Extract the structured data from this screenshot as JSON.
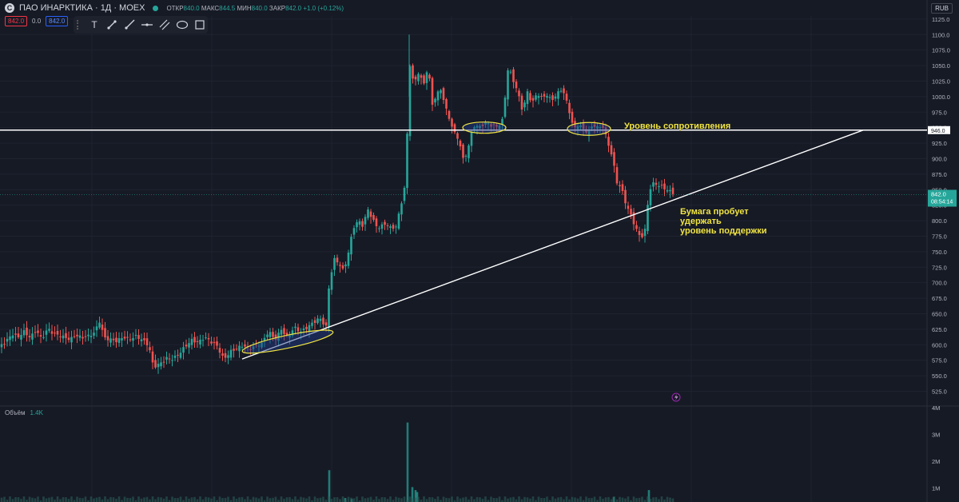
{
  "header": {
    "logo": "С",
    "title": "ПАО ИНАРКТИКА · 1Д · MOEX",
    "ohlc": [
      {
        "k": "ОТКР",
        "v": "840.0"
      },
      {
        "k": "МАКС",
        "v": "844.5"
      },
      {
        "k": "МИН",
        "v": "840.0"
      },
      {
        "k": "ЗАКР",
        "v": "842.0 +1.0 (+0.12%)"
      }
    ]
  },
  "row2": {
    "sell": "842.0",
    "spread": "0.0",
    "buy": "842.0"
  },
  "toolbar": {
    "icons": [
      "grip-icon",
      "text-icon",
      "trend-line-icon",
      "ray-icon",
      "horizontal-line-icon",
      "parallel-channel-icon",
      "ellipse-icon",
      "rectangle-icon"
    ]
  },
  "currency": "RUB",
  "volume": {
    "label": "Объём",
    "value": "1.4K"
  },
  "colors": {
    "bg": "#161a25",
    "up": "#26a69a",
    "down": "#ef5350",
    "line": "#ffffff",
    "annotation": "#f0e442"
  },
  "chart_data": {
    "type": "candlestick",
    "ylim": [
      505,
      1130
    ],
    "yticks": [
      1125,
      1100,
      1075,
      1050,
      1025,
      1000,
      975,
      950,
      925,
      900,
      875,
      850,
      825,
      800,
      775,
      750,
      725,
      700,
      675,
      650,
      625,
      600,
      575,
      550,
      525
    ],
    "ytick_labels": [
      "1125.0",
      "1100.0",
      "1075.0",
      "1050.0",
      "1025.0",
      "1000.0",
      "975.0",
      "950.0",
      "925.0",
      "900.0",
      "875.0",
      "850.0",
      "825.0",
      "800.0",
      "775.0",
      "750.0",
      "725.0",
      "700.0",
      "675.0",
      "650.0",
      "625.0",
      "600.0",
      "575.0",
      "550.0",
      "525.0"
    ],
    "close_path": [
      [
        0,
        600
      ],
      [
        8,
        605
      ],
      [
        15,
        615
      ],
      [
        22,
        608
      ],
      [
        30,
        618
      ],
      [
        38,
        610
      ],
      [
        45,
        625
      ],
      [
        52,
        612
      ],
      [
        60,
        630
      ],
      [
        66,
        622
      ],
      [
        72,
        618
      ],
      [
        80,
        612
      ],
      [
        88,
        606
      ],
      [
        95,
        612
      ],
      [
        102,
        608
      ],
      [
        110,
        612
      ],
      [
        118,
        620
      ],
      [
        125,
        642
      ],
      [
        130,
        615
      ],
      [
        138,
        612
      ],
      [
        146,
        608
      ],
      [
        154,
        612
      ],
      [
        162,
        606
      ],
      [
        170,
        610
      ],
      [
        178,
        605
      ],
      [
        186,
        598
      ],
      [
        192,
        565
      ],
      [
        200,
        572
      ],
      [
        208,
        582
      ],
      [
        216,
        580
      ],
      [
        224,
        586
      ],
      [
        232,
        596
      ],
      [
        240,
        604
      ],
      [
        248,
        600
      ],
      [
        256,
        610
      ],
      [
        264,
        605
      ],
      [
        272,
        600
      ],
      [
        280,
        580
      ],
      [
        288,
        592
      ],
      [
        296,
        595
      ],
      [
        304,
        598
      ],
      [
        312,
        590
      ],
      [
        320,
        595
      ],
      [
        328,
        600
      ],
      [
        336,
        622
      ],
      [
        344,
        610
      ],
      [
        352,
        628
      ],
      [
        360,
        615
      ],
      [
        368,
        630
      ],
      [
        376,
        620
      ],
      [
        384,
        625
      ],
      [
        392,
        632
      ],
      [
        400,
        640
      ],
      [
        408,
        628
      ],
      [
        412,
        700
      ],
      [
        418,
        740
      ],
      [
        424,
        735
      ],
      [
        430,
        722
      ],
      [
        436,
        752
      ],
      [
        442,
        790
      ],
      [
        448,
        800
      ],
      [
        454,
        790
      ],
      [
        460,
        815
      ],
      [
        466,
        800
      ],
      [
        472,
        785
      ],
      [
        478,
        790
      ],
      [
        484,
        795
      ],
      [
        490,
        788
      ],
      [
        496,
        795
      ],
      [
        502,
        830
      ],
      [
        508,
        870
      ],
      [
        512,
        1060
      ],
      [
        518,
        1020
      ],
      [
        524,
        1040
      ],
      [
        530,
        1015
      ],
      [
        536,
        1050
      ],
      [
        540,
        980
      ],
      [
        546,
        1000
      ],
      [
        552,
        1010
      ],
      [
        558,
        980
      ],
      [
        564,
        960
      ],
      [
        568,
        945
      ],
      [
        574,
        935
      ],
      [
        580,
        900
      ],
      [
        586,
        920
      ],
      [
        592,
        955
      ],
      [
        598,
        950
      ],
      [
        604,
        952
      ],
      [
        610,
        955
      ],
      [
        616,
        948
      ],
      [
        622,
        950
      ],
      [
        628,
        955
      ],
      [
        632,
        1000
      ],
      [
        636,
        1050
      ],
      [
        642,
        1030
      ],
      [
        648,
        1010
      ],
      [
        654,
        980
      ],
      [
        660,
        1010
      ],
      [
        666,
        990
      ],
      [
        672,
        1005
      ],
      [
        678,
        995
      ],
      [
        684,
        1000
      ],
      [
        690,
        990
      ],
      [
        696,
        1000
      ],
      [
        702,
        1010
      ],
      [
        706,
        1005
      ],
      [
        712,
        980
      ],
      [
        718,
        950
      ],
      [
        724,
        960
      ],
      [
        730,
        950
      ],
      [
        736,
        945
      ],
      [
        742,
        955
      ],
      [
        748,
        948
      ],
      [
        754,
        950
      ],
      [
        760,
        925
      ],
      [
        766,
        900
      ],
      [
        772,
        860
      ],
      [
        778,
        850
      ],
      [
        784,
        825
      ],
      [
        790,
        810
      ],
      [
        796,
        790
      ],
      [
        802,
        775
      ],
      [
        808,
        790
      ],
      [
        812,
        850
      ],
      [
        818,
        860
      ],
      [
        824,
        855
      ],
      [
        830,
        850
      ],
      [
        836,
        845
      ],
      [
        842,
        842
      ]
    ],
    "volume_bars": [
      [
        412,
        0.32
      ],
      [
        510,
        0.8
      ],
      [
        516,
        0.15
      ],
      [
        520,
        0.12
      ],
      [
        812,
        0.12
      ],
      [
        522,
        0.1
      ],
      [
        432,
        0.04
      ],
      [
        440,
        0.03
      ],
      [
        768,
        0.05
      ]
    ],
    "volume_axis": [
      "4M",
      "3M",
      "2M",
      "1M"
    ],
    "resistance": {
      "value": 946,
      "label": "946.0",
      "text": "Уровень сопротивления"
    },
    "support_line": {
      "from": [
        303,
        577
      ],
      "to": [
        1080,
        946
      ]
    },
    "last_price": {
      "value": 842,
      "label": "842.0",
      "countdown": "08:54:14"
    },
    "annotation": [
      "Бумага пробует",
      "удержать",
      "уровень поддержки"
    ],
    "highlights": [
      {
        "cx": 360,
        "cy": 605,
        "rx": 58,
        "ry": 8,
        "rot": -12
      },
      {
        "cx": 606,
        "cy": 950,
        "rx": 27,
        "ry": 7,
        "rot": 0
      },
      {
        "cx": 737,
        "cy": 948,
        "rx": 27,
        "ry": 8,
        "rot": 0
      }
    ]
  }
}
